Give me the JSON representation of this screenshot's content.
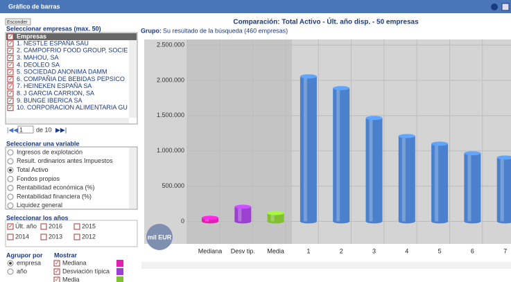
{
  "header": {
    "title": "Gráfico de barras"
  },
  "panel": {
    "hide": "Esconder",
    "companies_title": "Seleccionar empresas (max. 50)",
    "companies_header": "Empresas",
    "companies": [
      "1. NESTLE ESPAÑA SAU",
      "2. CAMPOFRIO FOOD GROUP, SOCIE",
      "3. MAHOU, SA",
      "4. DEOLEO SA",
      "5. SOCIEDAD ANONIMA DAMM",
      "6. COMPAÑIA DE BEBIDAS PEPSICO",
      "7. HEINEKEN ESPAÑA SA",
      "8. J GARCIA CARRION, SA",
      "9. BUNGE IBERICA SA",
      "10. CORPORACION ALIMENTARIA GU"
    ],
    "pager": {
      "page": "1",
      "of": "de 10"
    },
    "variable_title": "Seleccionar una variable",
    "variables": [
      "Ingresos de explotación",
      "Result. ordinarios antes Impuestos",
      "Total Activo",
      "Fondos propios",
      "Rentabilidad económica (%)",
      "Rentabilidad financiera (%)",
      "Liquidez general"
    ],
    "years_title": "Seleccionar los años",
    "years": [
      "Últ. año",
      "2016",
      "2015",
      "2014",
      "2013",
      "2012"
    ],
    "group_title": "Agrupor por",
    "group_options": [
      "empresa",
      "año"
    ],
    "show_title": "Mostrar",
    "show_options": [
      "Mediana",
      "Desviación típica",
      "Media"
    ]
  },
  "chart_data": {
    "type": "bar",
    "title": "Comparación: Total Activo - Últ. año disp. - 50 empresas",
    "subtitle_label": "Grupo:",
    "subtitle": "Su resultado de la búsqueda (460 empresas)",
    "unit": "mil EUR",
    "categories": [
      "Mediana",
      "Desv tip.",
      "Media",
      "1",
      "2",
      "3",
      "4",
      "5",
      "6",
      "7"
    ],
    "values": [
      50000,
      207000,
      118000,
      2057000,
      1890000,
      1467000,
      1210000,
      1102000,
      965000,
      905000
    ],
    "colors": [
      "#e020b0",
      "#9b40d0",
      "#80c030",
      "#4a80cc",
      "#4a80cc",
      "#4a80cc",
      "#4a80cc",
      "#4a80cc",
      "#4a80cc",
      "#4a80cc"
    ],
    "ylim": [
      -320000,
      2580000
    ],
    "yticks": [
      0,
      {
        "value": 500000,
        "label": "500.000"
      },
      {
        "value": 1000000,
        "label": "1.000.000"
      },
      {
        "value": 1500000,
        "label": "1.500.000"
      },
      {
        "value": 2000000,
        "label": "2.000.000"
      },
      {
        "value": 2500000,
        "label": "2.500.000"
      }
    ],
    "grid": true
  }
}
